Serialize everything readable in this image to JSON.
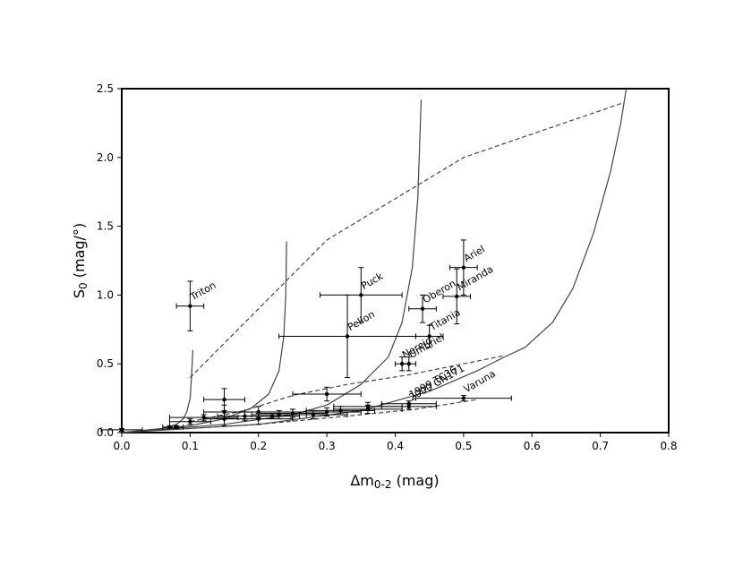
{
  "chart_data": {
    "type": "scatter",
    "title": "",
    "xlabel": {
      "main": "Δm",
      "sub": "0-2",
      "unit": " (mag)"
    },
    "ylabel": {
      "main": "S",
      "sub": "0",
      "unit": " (mag/°)"
    },
    "xlim": [
      0,
      0.8
    ],
    "ylim": [
      0,
      2.5
    ],
    "x_ticks": [
      "0.0",
      "0.1",
      "0.2",
      "0.3",
      "0.4",
      "0.5",
      "0.6",
      "0.7",
      "0.8"
    ],
    "y_ticks": [
      "0.0",
      "0.5",
      "1.0",
      "1.5",
      "2.0",
      "2.5"
    ],
    "grid": false,
    "labeled_points": [
      {
        "label": "Triton",
        "x": 0.1,
        "y": 0.92,
        "xerr": 0.02,
        "yerr": 0.18,
        "label_angle": -30
      },
      {
        "label": "Puck",
        "x": 0.35,
        "y": 1.0,
        "xerr": 0.06,
        "yerr": 0.2,
        "label_angle": -30
      },
      {
        "label": "Pelion",
        "x": 0.33,
        "y": 0.7,
        "xerr": 0.1,
        "yerr": 0.3,
        "label_angle": -30
      },
      {
        "label": "Oberon",
        "x": 0.44,
        "y": 0.9,
        "xerr": 0.02,
        "yerr": 0.1,
        "label_angle": -30
      },
      {
        "label": "Ariel",
        "x": 0.5,
        "y": 1.2,
        "xerr": 0.02,
        "yerr": 0.2,
        "label_angle": -30
      },
      {
        "label": "Miranda",
        "x": 0.49,
        "y": 0.99,
        "xerr": 0.02,
        "yerr": 0.2,
        "label_angle": -30
      },
      {
        "label": "Titania",
        "x": 0.45,
        "y": 0.7,
        "xerr": 0.02,
        "yerr": 0.08,
        "label_angle": -30
      },
      {
        "label": "Nereid",
        "x": 0.41,
        "y": 0.5,
        "xerr": 0.01,
        "yerr": 0.05,
        "label_angle": -30
      },
      {
        "label": "Umbriel",
        "x": 0.42,
        "y": 0.5,
        "xerr": 0.01,
        "yerr": 0.05,
        "label_angle": -30
      },
      {
        "label": "1999 TC36",
        "x": 0.42,
        "y": 0.21,
        "xerr": 0.04,
        "yerr": 0.02,
        "label_angle": -30
      },
      {
        "label": "2000 GN171",
        "x": 0.42,
        "y": 0.19,
        "xerr": 0.04,
        "yerr": 0.02,
        "label_angle": -30
      },
      {
        "label": "Varuna",
        "x": 0.5,
        "y": 0.25,
        "xerr": 0.07,
        "yerr": 0.02,
        "label_angle": -30
      }
    ],
    "unlabeled_points": [
      {
        "x": 0.0,
        "y": 0.02,
        "xerr": 0.03,
        "yerr": 0.01
      },
      {
        "x": 0.07,
        "y": 0.04,
        "xerr": 0.01,
        "yerr": 0.01
      },
      {
        "x": 0.08,
        "y": 0.04,
        "xerr": 0.01,
        "yerr": 0.01
      },
      {
        "x": 0.15,
        "y": 0.24,
        "xerr": 0.03,
        "yerr": 0.08
      },
      {
        "x": 0.15,
        "y": 0.15,
        "xerr": 0.03,
        "yerr": 0.05
      },
      {
        "x": 0.15,
        "y": 0.1,
        "xerr": 0.03,
        "yerr": 0.05
      },
      {
        "x": 0.18,
        "y": 0.12,
        "xerr": 0.04,
        "yerr": 0.03
      },
      {
        "x": 0.2,
        "y": 0.15,
        "xerr": 0.05,
        "yerr": 0.04
      },
      {
        "x": 0.2,
        "y": 0.1,
        "xerr": 0.05,
        "yerr": 0.04
      },
      {
        "x": 0.23,
        "y": 0.13,
        "xerr": 0.04,
        "yerr": 0.03
      },
      {
        "x": 0.25,
        "y": 0.14,
        "xerr": 0.05,
        "yerr": 0.03
      },
      {
        "x": 0.28,
        "y": 0.13,
        "xerr": 0.05,
        "yerr": 0.03
      },
      {
        "x": 0.3,
        "y": 0.28,
        "xerr": 0.05,
        "yerr": 0.05
      },
      {
        "x": 0.3,
        "y": 0.15,
        "xerr": 0.05,
        "yerr": 0.03
      },
      {
        "x": 0.32,
        "y": 0.16,
        "xerr": 0.05,
        "yerr": 0.03
      },
      {
        "x": 0.36,
        "y": 0.17,
        "xerr": 0.05,
        "yerr": 0.03
      },
      {
        "x": 0.36,
        "y": 0.19,
        "xerr": 0.05,
        "yerr": 0.03
      },
      {
        "x": 0.1,
        "y": 0.08,
        "xerr": 0.03,
        "yerr": 0.02
      },
      {
        "x": 0.12,
        "y": 0.11,
        "xerr": 0.05,
        "yerr": 0.02
      },
      {
        "x": 0.22,
        "y": 0.12,
        "xerr": 0.04,
        "yerr": 0.02
      }
    ],
    "curves": [
      {
        "style": "solid",
        "points": [
          [
            0.0,
            0.0
          ],
          [
            0.06,
            0.03
          ],
          [
            0.08,
            0.06
          ],
          [
            0.09,
            0.1
          ],
          [
            0.095,
            0.15
          ],
          [
            0.1,
            0.25
          ],
          [
            0.102,
            0.4
          ],
          [
            0.104,
            0.6
          ]
        ]
      },
      {
        "style": "solid",
        "points": [
          [
            0.0,
            0.0
          ],
          [
            0.1,
            0.05
          ],
          [
            0.15,
            0.1
          ],
          [
            0.19,
            0.18
          ],
          [
            0.215,
            0.28
          ],
          [
            0.23,
            0.45
          ],
          [
            0.237,
            0.7
          ],
          [
            0.24,
            1.0
          ],
          [
            0.241,
            1.39
          ]
        ]
      },
      {
        "style": "solid",
        "points": [
          [
            0.0,
            0.0
          ],
          [
            0.15,
            0.06
          ],
          [
            0.25,
            0.13
          ],
          [
            0.3,
            0.2
          ],
          [
            0.35,
            0.35
          ],
          [
            0.39,
            0.55
          ],
          [
            0.41,
            0.8
          ],
          [
            0.425,
            1.2
          ],
          [
            0.433,
            1.7
          ],
          [
            0.438,
            2.42
          ]
        ]
      },
      {
        "style": "solid",
        "points": [
          [
            0.0,
            0.0
          ],
          [
            0.2,
            0.06
          ],
          [
            0.35,
            0.16
          ],
          [
            0.45,
            0.3
          ],
          [
            0.52,
            0.45
          ],
          [
            0.56,
            0.55
          ],
          [
            0.59,
            0.62
          ],
          [
            0.63,
            0.8
          ],
          [
            0.66,
            1.05
          ],
          [
            0.69,
            1.45
          ],
          [
            0.715,
            1.9
          ],
          [
            0.73,
            2.25
          ],
          [
            0.738,
            2.5
          ]
        ]
      },
      {
        "style": "dashed",
        "points": [
          [
            0.1,
            0.4
          ],
          [
            0.3,
            1.4
          ],
          [
            0.5,
            2.0
          ],
          [
            0.735,
            2.4
          ]
        ]
      },
      {
        "style": "dashed",
        "points": [
          [
            0.1,
            0.08
          ],
          [
            0.18,
            0.16
          ],
          [
            0.25,
            0.27
          ],
          [
            0.33,
            0.35
          ],
          [
            0.42,
            0.42
          ],
          [
            0.5,
            0.5
          ],
          [
            0.56,
            0.56
          ]
        ]
      },
      {
        "style": "dashed",
        "points": [
          [
            0.0,
            0.0
          ],
          [
            0.2,
            0.06
          ],
          [
            0.33,
            0.12
          ],
          [
            0.43,
            0.17
          ],
          [
            0.52,
            0.24
          ]
        ]
      }
    ]
  }
}
